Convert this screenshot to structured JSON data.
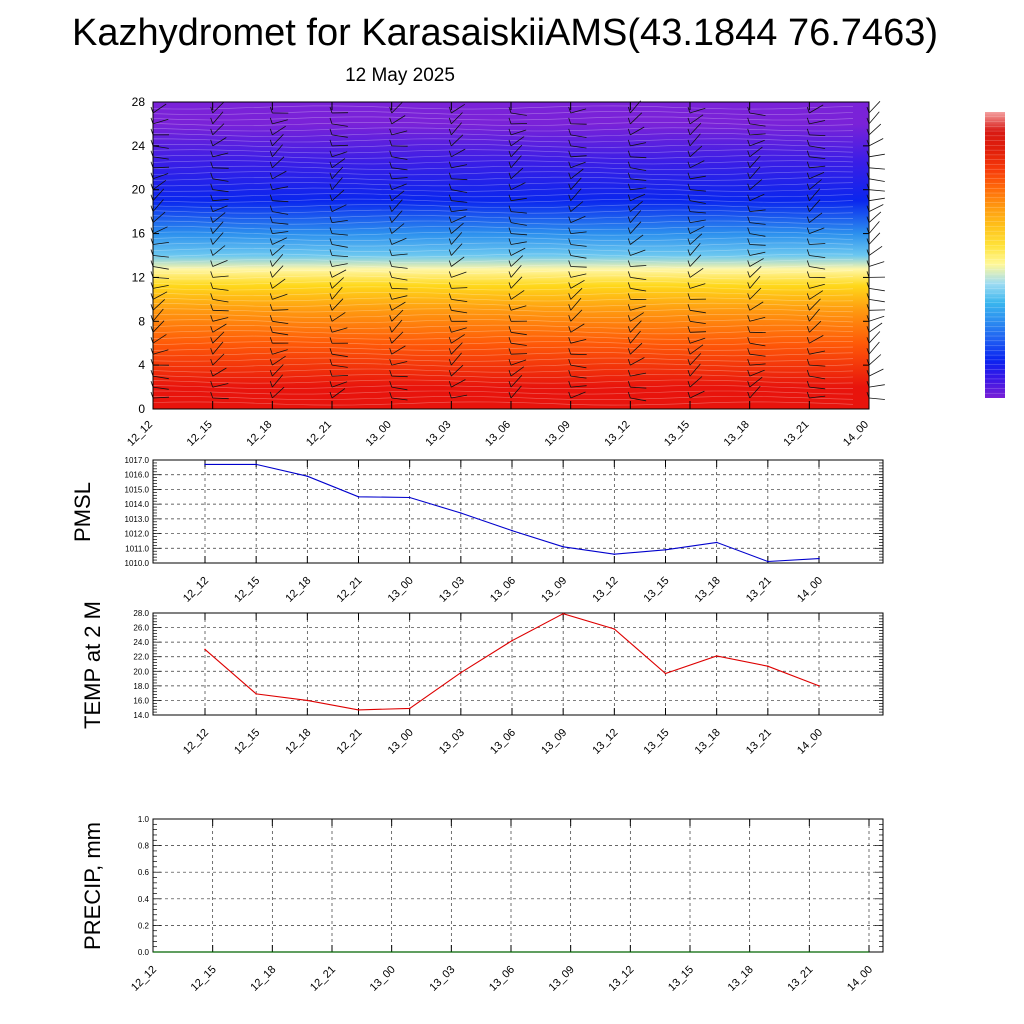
{
  "header": {
    "title": "Kazhydromet for KarasaiskiiAMS(43.1844 76.7463)",
    "date": "12 May 2025"
  },
  "chart_data": [
    {
      "type": "heatmap",
      "name": "vertical-cross-section",
      "x_tick_labels": [
        "12_12",
        "12_15",
        "12_18",
        "12_21",
        "13_00",
        "13_03",
        "13_06",
        "13_09",
        "13_12",
        "13_15",
        "13_18",
        "13_21",
        "14_00"
      ],
      "y_tick_labels": [
        "0",
        "4",
        "8",
        "12",
        "16",
        "20",
        "24",
        "28"
      ],
      "ylim": [
        0,
        28
      ],
      "colorbar_colors": [
        "#7a1fd6",
        "#3a16e6",
        "#0a24f0",
        "#1e5cf2",
        "#2c8cf0",
        "#3ab6ee",
        "#9fdcf2",
        "#fff89a",
        "#ffe23a",
        "#ffc21a",
        "#ff9a10",
        "#ff6a0a",
        "#f63a0a",
        "#e01e0a",
        "#d81a14",
        "#f4a0a0"
      ],
      "field_bands": [
        {
          "from": 0,
          "to": 4,
          "color": "#e8140c"
        },
        {
          "from": 4,
          "to": 8,
          "color": "#ff5a08"
        },
        {
          "from": 8,
          "to": 10,
          "color": "#ff9a10"
        },
        {
          "from": 10,
          "to": 12.5,
          "color": "#ffd81a"
        },
        {
          "from": 12.5,
          "to": 13,
          "color": "#fff7a8"
        },
        {
          "from": 13,
          "to": 15,
          "color": "#6cc8f0"
        },
        {
          "from": 15,
          "to": 17,
          "color": "#2c90ee"
        },
        {
          "from": 17,
          "to": 21,
          "color": "#0a26ee"
        },
        {
          "from": 21,
          "to": 24,
          "color": "#3a1ee6"
        },
        {
          "from": 24,
          "to": 28,
          "color": "#7a22d8"
        }
      ]
    },
    {
      "type": "line",
      "name": "pmsl",
      "ylabel": "PMSL",
      "x_tick_labels": [
        "12_12",
        "12_15",
        "12_18",
        "12_21",
        "13_00",
        "13_03",
        "13_06",
        "13_09",
        "13_12",
        "13_15",
        "13_18",
        "13_21",
        "14_00"
      ],
      "y_tick_labels": [
        "1010.0",
        "1011.0",
        "1012.0",
        "1013.0",
        "1014.0",
        "1015.0",
        "1016.0",
        "1017.0"
      ],
      "ylim": [
        1010,
        1017
      ],
      "series": [
        {
          "color": "#0000cc",
          "values": [
            1016.7,
            1016.7,
            1015.9,
            1014.5,
            1014.45,
            1013.4,
            1012.2,
            1011.1,
            1010.6,
            1010.9,
            1011.4,
            1010.1,
            1010.3
          ]
        }
      ]
    },
    {
      "type": "line",
      "name": "temp",
      "ylabel": "TEMP at 2 M",
      "x_tick_labels": [
        "12_12",
        "12_15",
        "12_18",
        "12_21",
        "13_00",
        "13_03",
        "13_06",
        "13_09",
        "13_12",
        "13_15",
        "13_18",
        "13_21",
        "14_00"
      ],
      "y_tick_labels": [
        "14.0",
        "16.0",
        "18.0",
        "20.0",
        "22.0",
        "24.0",
        "26.0",
        "28.0"
      ],
      "ylim": [
        14,
        28
      ],
      "series": [
        {
          "color": "#dd0000",
          "values": [
            23.0,
            16.9,
            16.0,
            14.7,
            14.9,
            19.8,
            24.2,
            27.9,
            25.8,
            19.7,
            22.1,
            20.7,
            18.0
          ]
        }
      ]
    },
    {
      "type": "line",
      "name": "precip",
      "ylabel": "PRECIP, mm",
      "x_tick_labels": [
        "12_12",
        "12_15",
        "12_18",
        "12_21",
        "13_00",
        "13_03",
        "13_06",
        "13_09",
        "13_12",
        "13_15",
        "13_18",
        "13_21",
        "14_00"
      ],
      "y_tick_labels": [
        "0.0",
        "0.2",
        "0.4",
        "0.6",
        "0.8",
        "1.0"
      ],
      "ylim": [
        0,
        1
      ],
      "series": [
        {
          "color": "#006400",
          "values": [
            0,
            0,
            0,
            0,
            0,
            0,
            0,
            0,
            0,
            0,
            0,
            0,
            0
          ]
        }
      ]
    }
  ]
}
